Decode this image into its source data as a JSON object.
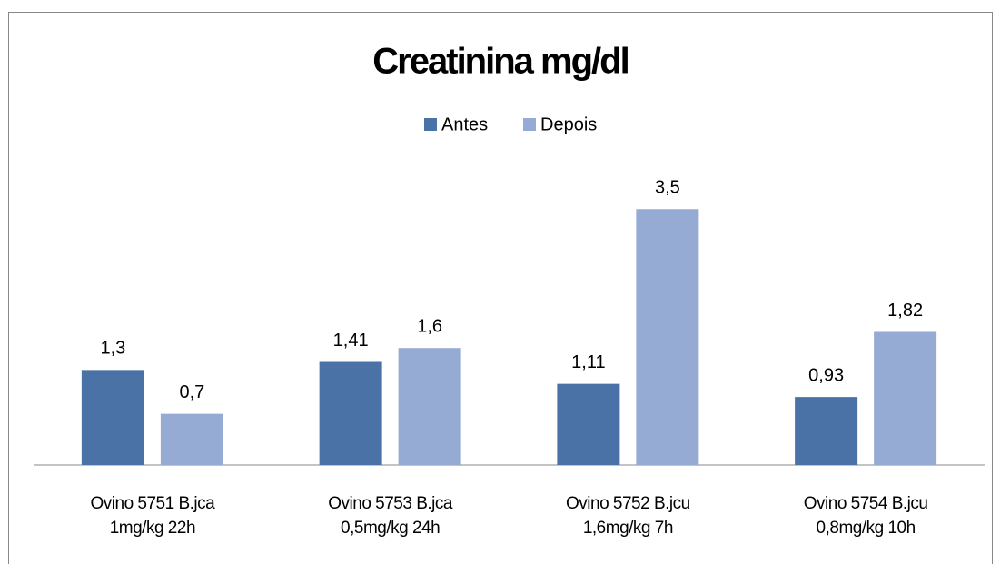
{
  "chart_data": {
    "type": "bar",
    "title": "Creatinina mg/dl",
    "categories": [
      [
        "Ovino 5751 B.jca",
        "1mg/kg   22h"
      ],
      [
        "Ovino 5753 B.jca",
        "0,5mg/kg   24h"
      ],
      [
        "Ovino 5752 B.jcu",
        "1,6mg/kg   7h"
      ],
      [
        "Ovino 5754 B.jcu",
        "0,8mg/kg   10h"
      ]
    ],
    "series": [
      {
        "name": "Antes",
        "color": "#4a72a6",
        "values": [
          1.3,
          1.41,
          1.11,
          0.93
        ],
        "value_labels": [
          "1,3",
          "1,41",
          "1,11",
          "0,93"
        ]
      },
      {
        "name": "Depois",
        "color": "#95abd3",
        "values": [
          0.7,
          1.6,
          3.5,
          1.82
        ],
        "value_labels": [
          "0,7",
          "1,6",
          "3,5",
          "1,82"
        ]
      }
    ],
    "ylim": [
      0,
      4
    ],
    "legend": "top"
  }
}
